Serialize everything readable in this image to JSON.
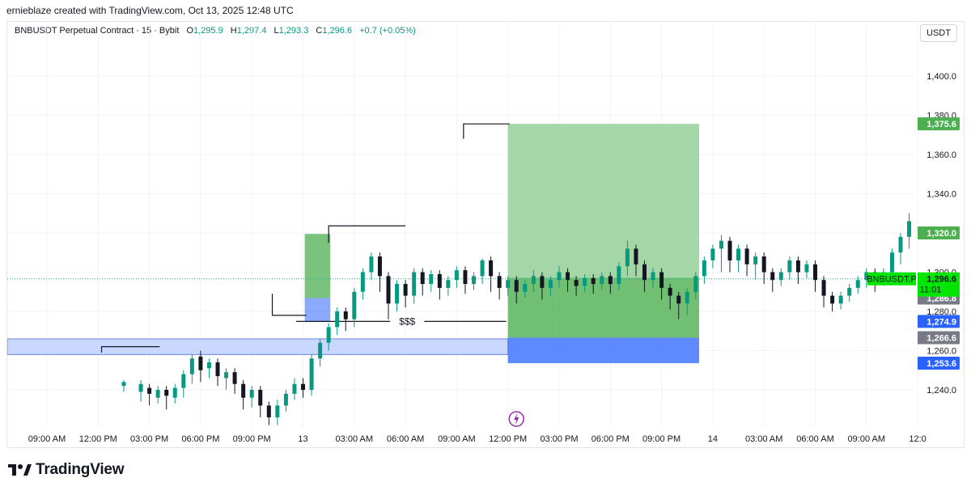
{
  "credit": "ernieblaze created with TradingView.com, Oct 13, 2025 12:48 UTC",
  "legend": {
    "symbol": "BNBUSDT Perpetual Contract · 15 · Bybit",
    "open_label": "O",
    "open": "1,295.9",
    "high_label": "H",
    "high": "1,297.4",
    "low_label": "L",
    "low": "1,293.3",
    "close_label": "C",
    "close": "1,296.6",
    "change": "+0.7 (+0.05%)"
  },
  "unit": "USDT",
  "brand": {
    "name": "TradingView",
    "logo_icon": "tradingview-logo-icon"
  },
  "colors": {
    "up": "#089981",
    "down": "#131722",
    "profit": "#4caf50",
    "profit_light": "#a5d6a7",
    "loss": "#2962ff",
    "zone": "#c5d3ff",
    "label_green": "#4caf50",
    "label_blue": "#2962ff",
    "label_grey": "#787b86",
    "current_bg": "#00e600"
  },
  "chart_data": {
    "type": "candlestick",
    "symbol": "BNBUSDT",
    "interval": "15",
    "ylim": [
      1222,
      1412
    ],
    "y_ticks": [
      "1,240.0",
      "1,260.0",
      "1,280.0",
      "1,300.0",
      "1,320.0",
      "1,340.0",
      "1,360.0",
      "1,380.0",
      "1,400.0"
    ],
    "y_tick_values": [
      1240,
      1260,
      1280,
      1300,
      1320,
      1340,
      1360,
      1380,
      1400
    ],
    "x_labels": [
      "09:00 AM",
      "12:00 PM",
      "03:00 PM",
      "06:00 PM",
      "09:00 PM",
      "13",
      "03:00 AM",
      "06:00 AM",
      "09:00 AM",
      "12:00 PM",
      "03:00 PM",
      "06:00 PM",
      "09:00 PM",
      "14",
      "03:00 AM",
      "06:00 AM",
      "09:00 AM",
      "12:0"
    ],
    "x_label_hours": [
      9,
      12,
      15,
      18,
      21,
      24,
      27,
      30,
      33,
      36,
      39,
      42,
      45,
      48,
      51,
      54,
      57,
      60
    ],
    "grid": true,
    "candles": [
      [
        13.5,
        1242,
        1244,
        1240,
        1245,
        1239
      ],
      [
        14.5,
        1239,
        1243,
        1236,
        1245,
        1234
      ],
      [
        15.0,
        1241,
        1238,
        1235,
        1243,
        1232
      ],
      [
        15.5,
        1236,
        1240,
        1234,
        1242,
        1233
      ],
      [
        16.0,
        1240,
        1237,
        1232,
        1242,
        1230
      ],
      [
        16.5,
        1236,
        1241,
        1234,
        1243,
        1233
      ],
      [
        17.0,
        1241,
        1248,
        1238,
        1250,
        1236
      ],
      [
        17.5,
        1248,
        1256,
        1245,
        1258,
        1243
      ],
      [
        18.0,
        1257,
        1250,
        1246,
        1260,
        1244
      ],
      [
        18.5,
        1251,
        1254,
        1248,
        1256,
        1246
      ],
      [
        19.0,
        1254,
        1247,
        1244,
        1256,
        1242
      ],
      [
        19.5,
        1246,
        1249,
        1243,
        1251,
        1240
      ],
      [
        20.0,
        1249,
        1243,
        1240,
        1251,
        1238
      ],
      [
        20.5,
        1243,
        1236,
        1233,
        1245,
        1230
      ],
      [
        21.0,
        1236,
        1240,
        1232,
        1242,
        1231
      ],
      [
        21.5,
        1240,
        1232,
        1228,
        1242,
        1226
      ],
      [
        22.0,
        1232,
        1226,
        1223,
        1234,
        1222
      ],
      [
        22.5,
        1226,
        1232,
        1224,
        1235,
        1222
      ],
      [
        23.0,
        1232,
        1238,
        1230,
        1240,
        1229
      ],
      [
        23.5,
        1238,
        1243,
        1236,
        1246,
        1235
      ],
      [
        24.0,
        1243,
        1240,
        1238,
        1246,
        1236
      ],
      [
        24.5,
        1240,
        1256,
        1238,
        1258,
        1237
      ],
      [
        25.0,
        1256,
        1264,
        1254,
        1266,
        1252
      ],
      [
        25.5,
        1264,
        1272,
        1262,
        1274,
        1260
      ],
      [
        26.0,
        1272,
        1280,
        1270,
        1282,
        1268
      ],
      [
        26.5,
        1280,
        1276,
        1272,
        1282,
        1270
      ],
      [
        27.0,
        1276,
        1290,
        1274,
        1292,
        1272
      ],
      [
        27.5,
        1290,
        1300,
        1288,
        1302,
        1286
      ],
      [
        28.0,
        1300,
        1308,
        1298,
        1310,
        1296
      ],
      [
        28.5,
        1308,
        1298,
        1292,
        1310,
        1290
      ],
      [
        29.0,
        1298,
        1284,
        1280,
        1300,
        1276
      ],
      [
        29.5,
        1284,
        1294,
        1282,
        1296,
        1280
      ],
      [
        30.0,
        1294,
        1288,
        1284,
        1296,
        1282
      ],
      [
        30.5,
        1288,
        1300,
        1286,
        1302,
        1284
      ],
      [
        31.0,
        1300,
        1294,
        1290,
        1302,
        1288
      ],
      [
        31.5,
        1294,
        1299,
        1292,
        1301,
        1290
      ],
      [
        32.0,
        1299,
        1292,
        1288,
        1301,
        1286
      ],
      [
        32.5,
        1292,
        1296,
        1290,
        1298,
        1288
      ],
      [
        33.0,
        1296,
        1301,
        1294,
        1303,
        1292
      ],
      [
        33.5,
        1301,
        1294,
        1290,
        1303,
        1289
      ],
      [
        34.0,
        1294,
        1298,
        1292,
        1300,
        1291
      ],
      [
        34.5,
        1298,
        1306,
        1296,
        1307,
        1294
      ],
      [
        35.0,
        1306,
        1298,
        1292,
        1308,
        1290
      ],
      [
        35.5,
        1298,
        1292,
        1288,
        1300,
        1286
      ],
      [
        36.0,
        1292,
        1296,
        1290,
        1298,
        1288
      ],
      [
        36.5,
        1296,
        1290,
        1286,
        1298,
        1284
      ],
      [
        37.0,
        1290,
        1294,
        1288,
        1296,
        1287
      ],
      [
        37.5,
        1294,
        1298,
        1292,
        1301,
        1290
      ],
      [
        38.0,
        1298,
        1292,
        1288,
        1300,
        1286
      ],
      [
        38.5,
        1292,
        1296,
        1290,
        1298,
        1288
      ],
      [
        39.0,
        1296,
        1300,
        1294,
        1303,
        1292
      ],
      [
        39.5,
        1300,
        1296,
        1292,
        1302,
        1290
      ],
      [
        40.0,
        1296,
        1293,
        1290,
        1298,
        1288
      ],
      [
        40.5,
        1293,
        1297,
        1291,
        1299,
        1290
      ],
      [
        41.0,
        1297,
        1294,
        1290,
        1299,
        1289
      ],
      [
        41.5,
        1294,
        1298,
        1292,
        1300,
        1291
      ],
      [
        42.0,
        1298,
        1294,
        1290,
        1300,
        1289
      ],
      [
        42.5,
        1294,
        1303,
        1292,
        1305,
        1291
      ],
      [
        43.0,
        1303,
        1312,
        1300,
        1316,
        1298
      ],
      [
        43.5,
        1312,
        1304,
        1300,
        1314,
        1298
      ],
      [
        44.0,
        1304,
        1296,
        1292,
        1306,
        1290
      ],
      [
        44.5,
        1296,
        1300,
        1294,
        1302,
        1292
      ],
      [
        45.0,
        1300,
        1292,
        1288,
        1302,
        1286
      ],
      [
        45.5,
        1292,
        1288,
        1282,
        1294,
        1281
      ],
      [
        46.0,
        1288,
        1284,
        1280,
        1290,
        1276
      ],
      [
        46.5,
        1284,
        1290,
        1282,
        1292,
        1278
      ],
      [
        47.0,
        1290,
        1298,
        1288,
        1300,
        1286
      ],
      [
        47.5,
        1298,
        1306,
        1296,
        1308,
        1294
      ],
      [
        48.0,
        1306,
        1312,
        1304,
        1314,
        1302
      ],
      [
        48.5,
        1312,
        1316,
        1302,
        1319,
        1300
      ],
      [
        49.0,
        1316,
        1306,
        1302,
        1318,
        1300
      ],
      [
        49.5,
        1306,
        1312,
        1304,
        1314,
        1300
      ],
      [
        50.0,
        1312,
        1304,
        1300,
        1314,
        1298
      ],
      [
        50.5,
        1304,
        1308,
        1298,
        1310,
        1296
      ],
      [
        51.0,
        1308,
        1300,
        1296,
        1310,
        1294
      ],
      [
        51.5,
        1300,
        1296,
        1292,
        1302,
        1290
      ],
      [
        52.0,
        1296,
        1300,
        1294,
        1302,
        1293
      ],
      [
        52.5,
        1300,
        1306,
        1298,
        1308,
        1296
      ],
      [
        53.0,
        1306,
        1300,
        1296,
        1308,
        1294
      ],
      [
        53.5,
        1300,
        1304,
        1298,
        1306,
        1297
      ],
      [
        54.0,
        1304,
        1296,
        1292,
        1306,
        1290
      ],
      [
        54.5,
        1296,
        1288,
        1284,
        1298,
        1282
      ],
      [
        55.0,
        1288,
        1284,
        1282,
        1290,
        1280
      ],
      [
        55.5,
        1284,
        1288,
        1282,
        1290,
        1281
      ],
      [
        56.0,
        1288,
        1292,
        1286,
        1294,
        1285
      ],
      [
        56.5,
        1292,
        1296,
        1290,
        1298,
        1289
      ],
      [
        57.0,
        1296,
        1300,
        1294,
        1302,
        1292
      ],
      [
        57.5,
        1300,
        1296,
        1292,
        1302,
        1290
      ],
      [
        58.0,
        1296,
        1300,
        1294,
        1302,
        1293
      ],
      [
        58.5,
        1300,
        1310,
        1298,
        1312,
        1297
      ],
      [
        59.0,
        1310,
        1318,
        1306,
        1320,
        1304
      ],
      [
        59.5,
        1318,
        1326,
        1314,
        1330,
        1312
      ],
      [
        60.0,
        1326,
        1334,
        1322,
        1338,
        1320
      ],
      [
        60.5,
        1334,
        1340,
        1330,
        1344,
        1328
      ],
      [
        61.0,
        1340,
        1336,
        1332,
        1346,
        1330
      ],
      [
        61.5,
        1336,
        1344,
        1334,
        1350,
        1332
      ],
      [
        62.0,
        1344,
        1354,
        1340,
        1358,
        1338
      ],
      [
        62.5,
        1354,
        1364,
        1350,
        1372,
        1348
      ],
      [
        63.0,
        1364,
        1356,
        1352,
        1368,
        1350
      ],
      [
        63.5,
        1356,
        1346,
        1342,
        1358,
        1340
      ],
      [
        64.0,
        1346,
        1352,
        1344,
        1356,
        1342
      ],
      [
        64.5,
        1352,
        1362,
        1348,
        1366,
        1346
      ],
      [
        65.0,
        1362,
        1356,
        1352,
        1364,
        1348
      ],
      [
        65.5,
        1356,
        1346,
        1340,
        1358,
        1336
      ],
      [
        66.0,
        1346,
        1336,
        1330,
        1348,
        1326
      ],
      [
        66.5,
        1336,
        1324,
        1318,
        1338,
        1314
      ],
      [
        67.0,
        1324,
        1316,
        1310,
        1326,
        1306
      ],
      [
        67.5,
        1316,
        1306,
        1300,
        1318,
        1296
      ],
      [
        68.0,
        1306,
        1294,
        1286,
        1308,
        1276
      ],
      [
        68.5,
        1294,
        1270,
        1266,
        1296,
        1264
      ],
      [
        69.0,
        1270,
        1280,
        1268,
        1284,
        1266
      ],
      [
        69.5,
        1280,
        1292,
        1278,
        1296,
        1276
      ],
      [
        70.0,
        1292,
        1298,
        1288,
        1302,
        1286
      ],
      [
        70.5,
        1298,
        1294,
        1290,
        1300,
        1288
      ],
      [
        71.0,
        1294,
        1297,
        1293,
        1305,
        1292
      ]
    ],
    "levels": {
      "ob_zone": [
        1258,
        1266
      ],
      "profit_target": 1375.6,
      "entry_ref": 1297.2,
      "stop": 1253.6,
      "liquidity_level": 1274.9,
      "swing_high_1": 1323.6,
      "swing_high_2": 1375.6
    },
    "liquidity_label": "$$$",
    "price_labels": [
      {
        "text": "1,375.6",
        "value": 1375.6,
        "style": "label_green"
      },
      {
        "text": "1,320.0",
        "value": 1320.0,
        "style": "label_green"
      },
      {
        "text": "1,286.8",
        "value": 1286.8,
        "style": "label_grey"
      },
      {
        "text": "1,274.9",
        "value": 1274.9,
        "style": "label_blue"
      },
      {
        "text": "1,266.6",
        "value": 1266.6,
        "style": "label_grey"
      },
      {
        "text": "1,253.6",
        "value": 1253.6,
        "style": "label_blue"
      }
    ],
    "current_price": {
      "symbol_tag": "BNBUSDT.P",
      "price": "1,296.6",
      "countdown": "11:01",
      "value": 1296.6
    }
  }
}
